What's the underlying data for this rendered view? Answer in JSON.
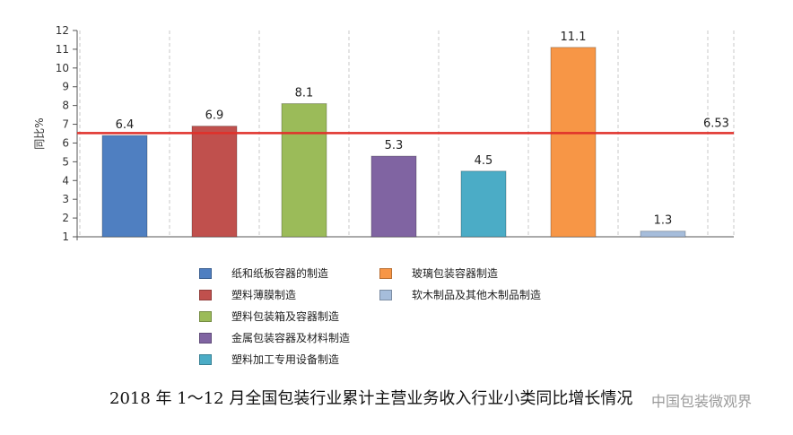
{
  "chart_data": {
    "type": "bar",
    "title": "",
    "ylabel": "同比%",
    "xlabel": "",
    "ylim": [
      1,
      12
    ],
    "yticks": [
      1,
      2,
      3,
      4,
      5,
      6,
      7,
      8,
      9,
      10,
      11,
      12
    ],
    "grid": "vertical dashed",
    "categories": [
      "纸和纸板容器的制造",
      "塑料薄膜制造",
      "塑料包装箱及容器制造",
      "金属包装容器及材料制造",
      "塑料加工专用设备制造",
      "玻璃包装容器制造",
      "软木制品及其他木制品制造"
    ],
    "values": [
      6.4,
      6.9,
      8.1,
      5.3,
      4.5,
      11.1,
      1.3
    ],
    "value_labels": [
      "6.4",
      "6.9",
      "8.1",
      "5.3",
      "4.5",
      "11.1",
      "1.3"
    ],
    "colors": [
      "#4f7fc1",
      "#c0504d",
      "#9bbb59",
      "#8064a2",
      "#4bacc6",
      "#f79646",
      "#a6bddb"
    ],
    "reference_line": {
      "value": 6.53,
      "label": "6.53",
      "color": "#e0302a"
    },
    "legend_position": "bottom"
  },
  "legend": {
    "items": [
      {
        "label": "纸和纸板容器的制造",
        "color": "#4f7fc1"
      },
      {
        "label": "塑料薄膜制造",
        "color": "#c0504d"
      },
      {
        "label": "塑料包装箱及容器制造",
        "color": "#9bbb59"
      },
      {
        "label": "金属包装容器及材料制造",
        "color": "#8064a2"
      },
      {
        "label": "塑料加工专用设备制造",
        "color": "#4bacc6"
      },
      {
        "label": "玻璃包装容器制造",
        "color": "#f79646"
      },
      {
        "label": "软木制品及其他木制品制造",
        "color": "#a6bddb"
      }
    ]
  },
  "caption": "2018 年 1～12 月全国包装行业累计主营业务收入行业小类同比增长情况",
  "watermark": "中国包装微观界"
}
